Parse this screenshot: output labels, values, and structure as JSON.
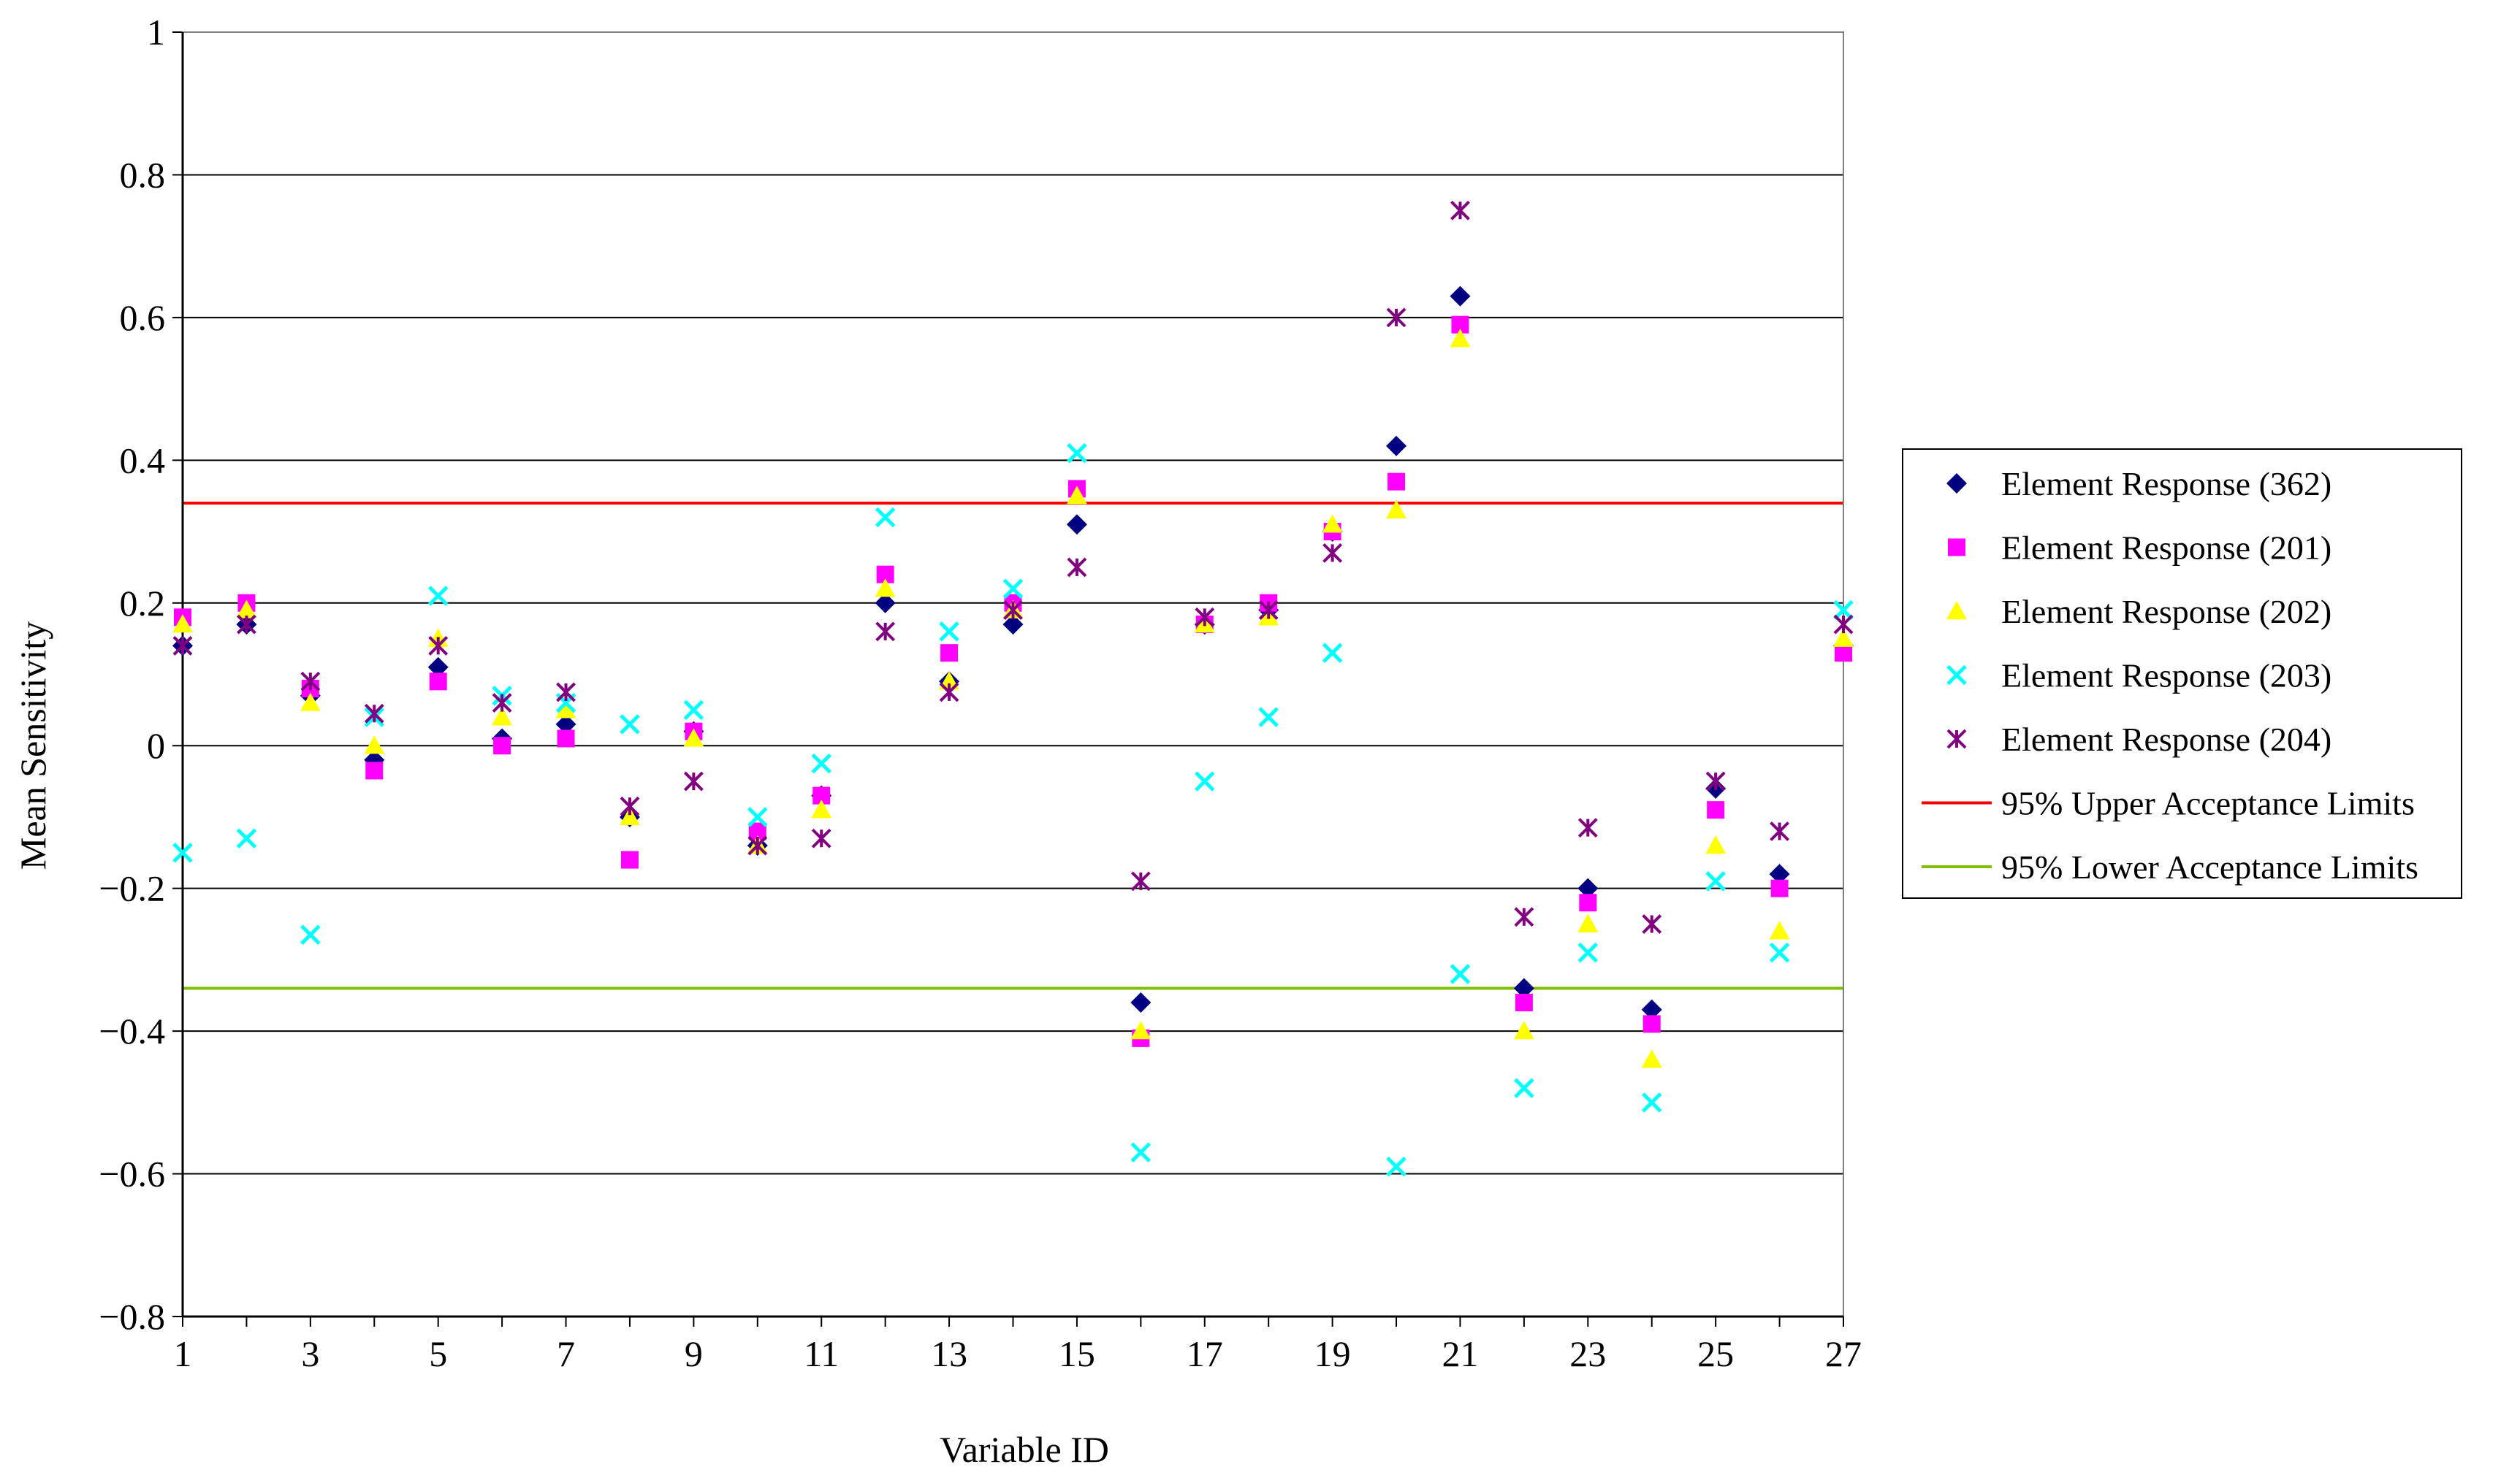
{
  "chart_data": {
    "type": "scatter",
    "title": "",
    "xlabel": "Variable ID",
    "ylabel": "Mean Sensitivity",
    "xlim": [
      1,
      27
    ],
    "ylim": [
      -0.8,
      1
    ],
    "x_ticks": [
      1,
      3,
      5,
      7,
      9,
      11,
      13,
      15,
      17,
      19,
      21,
      23,
      25,
      27
    ],
    "x_tick_labels": [
      "1",
      "3",
      "5",
      "7",
      "9",
      "11",
      "13",
      "15",
      "17",
      "19",
      "21",
      "23",
      "25",
      "27"
    ],
    "y_ticks": [
      -0.8,
      -0.6,
      -0.4,
      -0.2,
      0,
      0.2,
      0.4,
      0.6,
      0.8,
      1
    ],
    "y_tick_labels": [
      "−0.8",
      "−0.6",
      "−0.4",
      "−0.2",
      "0",
      "0.2",
      "0.4",
      "0.6",
      "0.8",
      "1"
    ],
    "grid": "horizontal",
    "legend_position": "right",
    "x": [
      1,
      2,
      3,
      4,
      5,
      6,
      7,
      8,
      9,
      10,
      11,
      12,
      13,
      14,
      15,
      16,
      17,
      18,
      19,
      20,
      21,
      22,
      23,
      24,
      25,
      26,
      27
    ],
    "series": [
      {
        "name": "Element Response (362)",
        "marker": "diamond",
        "color": "#000080",
        "values": [
          0.14,
          0.17,
          0.07,
          -0.02,
          0.11,
          0.01,
          0.03,
          -0.1,
          0.02,
          -0.14,
          -0.07,
          0.2,
          0.09,
          0.17,
          0.31,
          -0.36,
          0.17,
          0.19,
          0.3,
          0.42,
          0.63,
          -0.34,
          -0.2,
          -0.37,
          -0.06,
          -0.18,
          0.14
        ]
      },
      {
        "name": "Element Response (201)",
        "marker": "square",
        "color": "#FF00FF",
        "values": [
          0.18,
          0.2,
          0.08,
          -0.035,
          0.09,
          0.0,
          0.01,
          -0.16,
          0.02,
          -0.12,
          -0.07,
          0.24,
          0.13,
          0.2,
          0.36,
          -0.41,
          0.17,
          0.2,
          0.3,
          0.37,
          0.59,
          -0.36,
          -0.22,
          -0.39,
          -0.09,
          -0.2,
          0.13
        ]
      },
      {
        "name": "Element Response (202)",
        "marker": "triangle",
        "color": "#FFFF00",
        "values": [
          0.17,
          0.19,
          0.06,
          0.0,
          0.15,
          0.04,
          0.05,
          -0.1,
          0.01,
          -0.14,
          -0.09,
          0.22,
          0.09,
          0.19,
          0.35,
          -0.4,
          0.17,
          0.18,
          0.31,
          0.33,
          0.57,
          -0.4,
          -0.25,
          -0.44,
          -0.14,
          -0.26,
          0.15
        ]
      },
      {
        "name": "Element Response (203)",
        "marker": "x",
        "color": "#00FFFF",
        "values": [
          -0.15,
          -0.13,
          -0.265,
          0.04,
          0.21,
          0.07,
          0.06,
          0.03,
          0.05,
          -0.1,
          -0.025,
          0.32,
          0.16,
          0.22,
          0.41,
          -0.57,
          -0.05,
          0.04,
          0.13,
          -0.59,
          -0.32,
          -0.48,
          -0.29,
          -0.5,
          -0.19,
          -0.29,
          0.19
        ]
      },
      {
        "name": "Element Response (204)",
        "marker": "star",
        "color": "#800080",
        "values": [
          0.14,
          0.17,
          0.09,
          0.045,
          0.14,
          0.06,
          0.075,
          -0.085,
          -0.05,
          -0.14,
          -0.13,
          0.16,
          0.075,
          0.19,
          0.25,
          -0.19,
          0.18,
          0.19,
          0.27,
          0.6,
          0.75,
          -0.24,
          -0.115,
          -0.25,
          -0.05,
          -0.12,
          0.17
        ]
      }
    ],
    "lines": [
      {
        "name": "95% Upper Acceptance Limits",
        "color": "#FF0000",
        "y": 0.34
      },
      {
        "name": "95% Lower Acceptance Limits",
        "color": "#80C000",
        "y": -0.34
      }
    ]
  }
}
